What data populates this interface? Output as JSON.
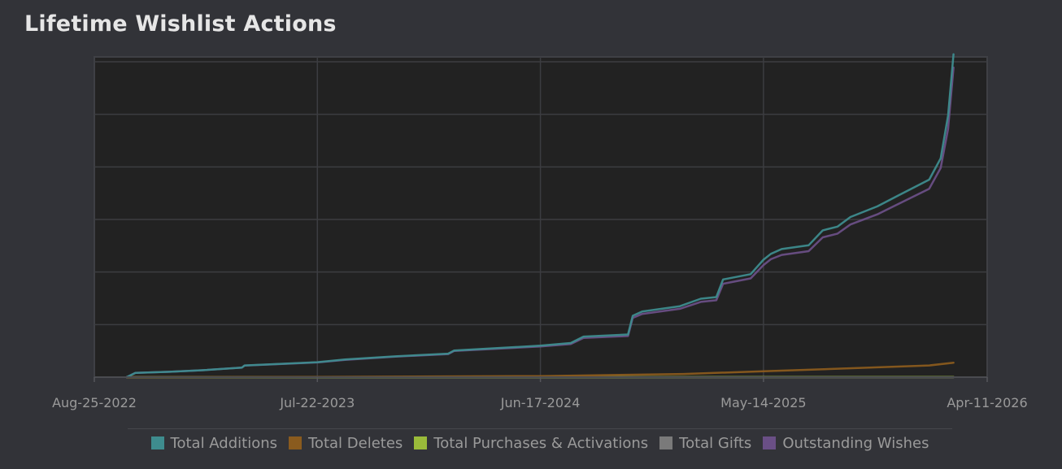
{
  "page": {
    "title": "Lifetime Wishlist Actions"
  },
  "chart_data": {
    "type": "line",
    "title": "Lifetime Wishlist Actions",
    "xlabel": "",
    "ylabel": "",
    "x_axis": {
      "type": "date",
      "range": [
        "2022-08-25",
        "2026-04-11"
      ],
      "ticks": [
        "2022-08-25",
        "2023-07-22",
        "2024-06-17",
        "2025-05-14",
        "2026-04-11"
      ],
      "tick_labels": [
        "Aug-25-2022",
        "Jul-22-2023",
        "Jun-17-2024",
        "May-14-2025",
        "Apr-11-2026"
      ]
    },
    "y_axis": {
      "range": [
        0,
        6000
      ],
      "gridlines": 6,
      "tick_labels_shown": false
    },
    "grid": true,
    "legend_position": "bottom",
    "series": [
      {
        "name": "Total Additions",
        "color": "#3e8c8e",
        "points": [
          [
            "2022-10-12",
            0
          ],
          [
            "2022-10-25",
            80
          ],
          [
            "2022-12-15",
            100
          ],
          [
            "2023-02-01",
            130
          ],
          [
            "2023-04-01",
            180
          ],
          [
            "2023-04-05",
            220
          ],
          [
            "2023-07-22",
            280
          ],
          [
            "2023-09-01",
            330
          ],
          [
            "2023-11-15",
            390
          ],
          [
            "2024-02-01",
            440
          ],
          [
            "2024-02-10",
            500
          ],
          [
            "2024-06-17",
            590
          ],
          [
            "2024-08-01",
            640
          ],
          [
            "2024-08-20",
            760
          ],
          [
            "2024-10-25",
            800
          ],
          [
            "2024-11-01",
            1150
          ],
          [
            "2024-11-15",
            1230
          ],
          [
            "2025-01-10",
            1330
          ],
          [
            "2025-02-10",
            1470
          ],
          [
            "2025-03-05",
            1500
          ],
          [
            "2025-03-15",
            1830
          ],
          [
            "2025-04-25",
            1930
          ],
          [
            "2025-05-14",
            2200
          ],
          [
            "2025-05-25",
            2310
          ],
          [
            "2025-06-10",
            2400
          ],
          [
            "2025-07-20",
            2470
          ],
          [
            "2025-08-10",
            2750
          ],
          [
            "2025-09-01",
            2820
          ],
          [
            "2025-09-20",
            3000
          ],
          [
            "2025-10-30",
            3200
          ],
          [
            "2025-12-01",
            3410
          ],
          [
            "2026-01-15",
            3700
          ],
          [
            "2026-02-01",
            4100
          ],
          [
            "2026-02-12",
            4900
          ],
          [
            "2026-02-20",
            6050
          ]
        ]
      },
      {
        "name": "Total Deletes",
        "color": "#8a5b1e",
        "points": [
          [
            "2022-10-12",
            0
          ],
          [
            "2023-07-22",
            5
          ],
          [
            "2024-06-17",
            20
          ],
          [
            "2025-01-15",
            60
          ],
          [
            "2025-05-14",
            110
          ],
          [
            "2025-10-01",
            170
          ],
          [
            "2026-01-15",
            220
          ],
          [
            "2026-02-20",
            270
          ]
        ]
      },
      {
        "name": "Total Purchases & Activations",
        "color": "#9abb3a",
        "points": [
          [
            "2022-10-12",
            0
          ],
          [
            "2026-02-20",
            2
          ]
        ]
      },
      {
        "name": "Total Gifts",
        "color": "#7a7a7a",
        "points": [
          [
            "2022-10-12",
            0
          ],
          [
            "2026-02-20",
            0
          ]
        ]
      },
      {
        "name": "Outstanding Wishes",
        "color": "#6a4f86",
        "points": [
          [
            "2022-10-12",
            0
          ],
          [
            "2022-10-25",
            80
          ],
          [
            "2022-12-15",
            100
          ],
          [
            "2023-02-01",
            130
          ],
          [
            "2023-04-01",
            178
          ],
          [
            "2023-04-05",
            218
          ],
          [
            "2023-07-22",
            275
          ],
          [
            "2023-09-01",
            325
          ],
          [
            "2023-11-15",
            383
          ],
          [
            "2024-02-01",
            432
          ],
          [
            "2024-02-10",
            490
          ],
          [
            "2024-06-17",
            575
          ],
          [
            "2024-08-01",
            620
          ],
          [
            "2024-08-20",
            735
          ],
          [
            "2024-10-25",
            770
          ],
          [
            "2024-11-01",
            1110
          ],
          [
            "2024-11-15",
            1185
          ],
          [
            "2025-01-10",
            1280
          ],
          [
            "2025-02-10",
            1410
          ],
          [
            "2025-03-05",
            1440
          ],
          [
            "2025-03-15",
            1750
          ],
          [
            "2025-04-25",
            1850
          ],
          [
            "2025-05-14",
            2100
          ],
          [
            "2025-05-25",
            2210
          ],
          [
            "2025-06-10",
            2290
          ],
          [
            "2025-07-20",
            2360
          ],
          [
            "2025-08-10",
            2620
          ],
          [
            "2025-09-01",
            2690
          ],
          [
            "2025-09-20",
            2860
          ],
          [
            "2025-10-30",
            3050
          ],
          [
            "2025-12-01",
            3250
          ],
          [
            "2026-01-15",
            3530
          ],
          [
            "2026-02-01",
            3920
          ],
          [
            "2026-02-12",
            4650
          ],
          [
            "2026-02-20",
            5800
          ]
        ]
      }
    ]
  }
}
